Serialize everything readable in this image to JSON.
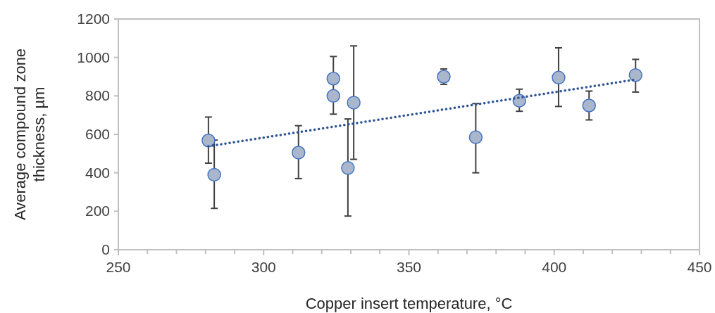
{
  "chart_data": {
    "type": "scatter",
    "xlabel": "Copper insert temperature, °C",
    "ylabel": "Average compound zone thickness, µm",
    "xlim": [
      250,
      450
    ],
    "xticks": [
      250,
      {
        "value": 260,
        "label": null
      },
      {
        "value": 270,
        "label": null
      },
      {
        "value": 280,
        "label": null
      },
      {
        "value": 290,
        "label": null
      },
      300,
      {
        "value": 310,
        "label": null
      },
      {
        "value": 320,
        "label": null
      },
      {
        "value": 330,
        "label": null
      },
      {
        "value": 340,
        "label": null
      },
      350,
      {
        "value": 360,
        "label": null
      },
      {
        "value": 370,
        "label": null
      },
      {
        "value": 380,
        "label": null
      },
      {
        "value": 390,
        "label": null
      },
      400,
      {
        "value": 410,
        "label": null
      },
      {
        "value": 420,
        "label": null
      },
      {
        "value": 430,
        "label": null
      },
      {
        "value": 440,
        "label": null
      },
      450
    ],
    "ylim": [
      0,
      1200
    ],
    "yticks": [
      0,
      200,
      400,
      600,
      800,
      1000,
      1200
    ],
    "grid": false,
    "series": [
      {
        "color": "#a9b6cc",
        "marker": "circle",
        "x": [
          281,
          283,
          312,
          324,
          324,
          329,
          331,
          362,
          373,
          388,
          401.5,
          412,
          428
        ],
        "values": [
          568,
          390,
          505,
          890,
          800,
          425,
          765,
          900,
          585,
          775,
          895,
          750,
          908
        ],
        "errors": [
          [
            450,
            690
          ],
          [
            215,
            570
          ],
          [
            370,
            645
          ],
          [
            780,
            1005
          ],
          [
            705,
            800
          ],
          [
            175,
            680
          ],
          [
            470,
            1060
          ],
          [
            860,
            940
          ],
          [
            400,
            760
          ],
          [
            720,
            835
          ],
          [
            745,
            1050
          ],
          [
            675,
            825
          ],
          [
            820,
            990
          ]
        ]
      },
      {
        "type": "line",
        "color": "#2f5597",
        "line_style": "dotted",
        "marker": "none",
        "x": [
          281,
          428
        ],
        "values": [
          538,
          885
        ]
      }
    ]
  }
}
